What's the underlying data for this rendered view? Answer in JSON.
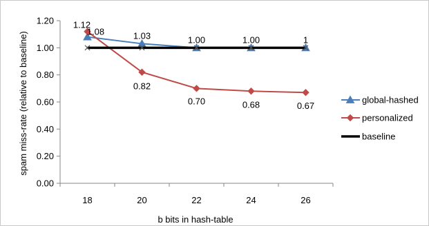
{
  "chart_data": {
    "type": "line",
    "title": "",
    "xlabel": "b bits in hash-table",
    "ylabel": "spam miss-rate (relative to baseline)",
    "x": [
      18,
      20,
      22,
      24,
      26
    ],
    "x_tick_labels": [
      "18",
      "20",
      "22",
      "24",
      "26"
    ],
    "ylim": [
      0,
      1.2
    ],
    "y_ticks": [
      0,
      0.2,
      0.4,
      0.6,
      0.8,
      1.0,
      1.2
    ],
    "y_tick_labels": [
      "0.00",
      "0.20",
      "0.40",
      "0.60",
      "0.80",
      "1.00",
      "1.20"
    ],
    "grid": false,
    "legend_position": "right",
    "series": [
      {
        "name": "global-hashed",
        "color": "#4a7ebb",
        "marker": "triangle",
        "values": [
          1.08,
          1.03,
          1.0,
          1.0,
          1.0
        ],
        "labels": [
          "1.08",
          "1.03",
          "1.00",
          "1.00",
          "1"
        ]
      },
      {
        "name": "personalized",
        "color": "#be4b48",
        "marker": "diamond",
        "values": [
          1.12,
          0.82,
          0.7,
          0.68,
          0.67
        ],
        "labels": [
          "1.12",
          "0.82",
          "0.70",
          "0.68",
          "0.67"
        ]
      },
      {
        "name": "baseline",
        "color": "#000000",
        "marker": "x",
        "values": [
          1.0,
          1.0,
          1.0,
          1.0,
          1.0
        ],
        "labels": []
      }
    ]
  }
}
